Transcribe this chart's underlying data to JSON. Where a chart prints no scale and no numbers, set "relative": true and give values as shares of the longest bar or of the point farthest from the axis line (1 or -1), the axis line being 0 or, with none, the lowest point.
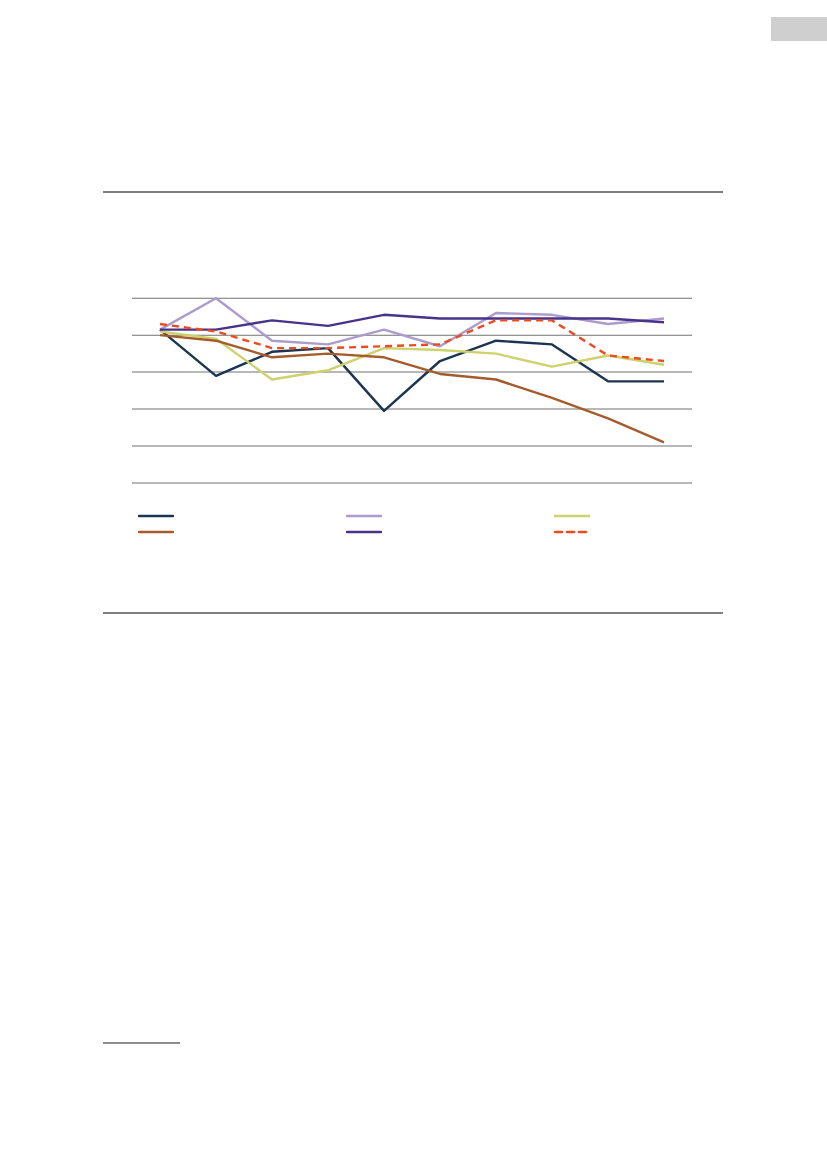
{
  "chart_data": {
    "type": "line",
    "relative": true,
    "grid": "y",
    "categories": [
      null,
      null,
      null,
      null,
      null,
      null,
      null,
      null,
      null,
      null
    ],
    "series": [
      {
        "color": "#1b3450",
        "values": [
          0.83,
          0.58,
          0.71,
          0.73,
          0.39,
          0.66,
          0.77,
          0.75,
          0.55,
          0.55
        ]
      },
      {
        "color": "#ab9ccb",
        "values": [
          0.83,
          1.0,
          0.77,
          0.75,
          0.83,
          0.74,
          0.92,
          0.91,
          0.86,
          0.89
        ]
      },
      {
        "color": "#cdd26c",
        "values": [
          0.82,
          0.78,
          0.56,
          0.61,
          0.73,
          0.72,
          0.7,
          0.63,
          0.69,
          0.64
        ]
      },
      {
        "color": "#a55c2c",
        "values": [
          0.8,
          0.77,
          0.68,
          0.7,
          0.68,
          0.59,
          0.56,
          0.46,
          0.35,
          0.22
        ]
      },
      {
        "color": "#47338b",
        "values": [
          0.83,
          0.83,
          0.88,
          0.85,
          0.91,
          0.89,
          0.89,
          0.89,
          0.89,
          0.87
        ]
      },
      {
        "color": "#ee4a1e",
        "line_style": "dashed",
        "values": [
          0.86,
          0.82,
          0.73,
          0.73,
          0.74,
          0.75,
          0.88,
          0.88,
          0.69,
          0.66
        ]
      }
    ]
  }
}
